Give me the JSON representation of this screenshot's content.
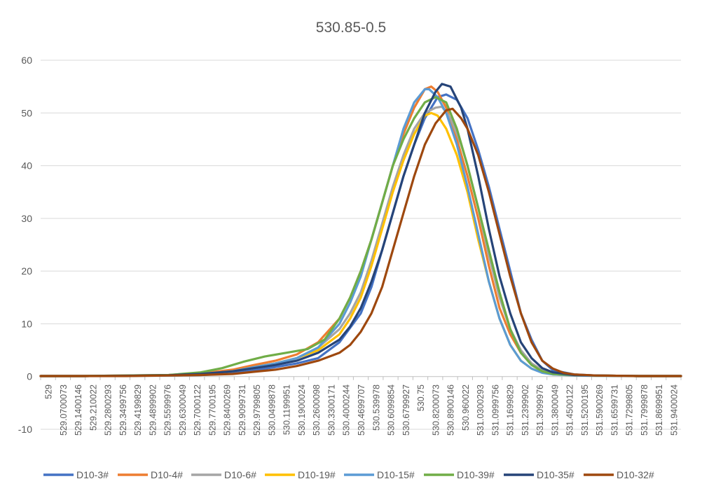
{
  "chart_data": {
    "type": "line",
    "title": "530.85-0.5",
    "xlabel": "",
    "ylabel": "",
    "ylim": [
      -10,
      60
    ],
    "yticks": [
      -10,
      0,
      10,
      20,
      30,
      40,
      50,
      60
    ],
    "x_category_labels": [
      "529",
      "529.0700073",
      "529.1400146",
      "529.210022",
      "529.2800293",
      "529.3499756",
      "529.4199829",
      "529.4899902",
      "529.5599976",
      "529.6300049",
      "529.7000122",
      "529.7700195",
      "529.8400269",
      "529.9099731",
      "529.9799805",
      "530.0499878",
      "530.1199951",
      "530.1900024",
      "530.2600098",
      "530.3300171",
      "530.4000244",
      "530.4699707",
      "530.539978",
      "530.6099854",
      "530.6799927",
      "530.75",
      "530.8200073",
      "530.8900146",
      "530.960022",
      "531.0300293",
      "531.0999756",
      "531.1699829",
      "531.2399902",
      "531.3099976",
      "531.3800049",
      "531.4500122",
      "531.5200195",
      "531.5900269",
      "531.6599731",
      "531.7299805",
      "531.7999878",
      "531.8699951",
      "531.9400024"
    ],
    "grid": true,
    "legend_position": "bottom",
    "series": [
      {
        "name": "D10-3#",
        "color": "#4472C4",
        "points": [
          [
            529.0,
            0.1
          ],
          [
            529.2,
            0.1
          ],
          [
            529.4,
            0.15
          ],
          [
            529.6,
            0.2
          ],
          [
            529.75,
            0.3
          ],
          [
            529.9,
            0.6
          ],
          [
            530.0,
            1.2
          ],
          [
            530.1,
            1.8
          ],
          [
            530.2,
            2.5
          ],
          [
            530.3,
            3.5
          ],
          [
            530.4,
            6.5
          ],
          [
            530.5,
            12
          ],
          [
            530.55,
            17
          ],
          [
            530.6,
            24
          ],
          [
            530.65,
            31
          ],
          [
            530.7,
            38
          ],
          [
            530.75,
            44
          ],
          [
            530.8,
            49
          ],
          [
            530.83,
            51
          ],
          [
            530.86,
            53
          ],
          [
            530.9,
            53.5
          ],
          [
            530.95,
            52.5
          ],
          [
            531.0,
            49
          ],
          [
            531.05,
            43
          ],
          [
            531.1,
            36
          ],
          [
            531.15,
            28
          ],
          [
            531.2,
            20
          ],
          [
            531.25,
            12
          ],
          [
            531.3,
            7
          ],
          [
            531.35,
            3
          ],
          [
            531.4,
            1.2
          ],
          [
            531.5,
            0.4
          ],
          [
            531.6,
            0.2
          ],
          [
            531.8,
            0.1
          ],
          [
            532.0,
            0.1
          ]
        ]
      },
      {
        "name": "D10-4#",
        "color": "#ED7D31",
        "points": [
          [
            529.0,
            0.1
          ],
          [
            529.2,
            0.1
          ],
          [
            529.4,
            0.2
          ],
          [
            529.6,
            0.3
          ],
          [
            529.75,
            0.6
          ],
          [
            529.9,
            1.3
          ],
          [
            530.0,
            2.2
          ],
          [
            530.1,
            3
          ],
          [
            530.2,
            4.2
          ],
          [
            530.3,
            6.5
          ],
          [
            530.4,
            11
          ],
          [
            530.45,
            15
          ],
          [
            530.5,
            20
          ],
          [
            530.55,
            26
          ],
          [
            530.6,
            33
          ],
          [
            530.65,
            40
          ],
          [
            530.7,
            46
          ],
          [
            530.75,
            51
          ],
          [
            530.8,
            54.5
          ],
          [
            530.83,
            55
          ],
          [
            530.86,
            54
          ],
          [
            530.9,
            51
          ],
          [
            530.95,
            45
          ],
          [
            531.0,
            38
          ],
          [
            531.05,
            30
          ],
          [
            531.1,
            21
          ],
          [
            531.15,
            13
          ],
          [
            531.2,
            8
          ],
          [
            531.25,
            4.5
          ],
          [
            531.3,
            2.5
          ],
          [
            531.35,
            1.2
          ],
          [
            531.4,
            0.6
          ],
          [
            531.5,
            0.3
          ],
          [
            531.6,
            0.2
          ],
          [
            531.8,
            0.1
          ],
          [
            532.0,
            0.1
          ]
        ]
      },
      {
        "name": "D10-6#",
        "color": "#A5A5A5",
        "points": [
          [
            529.0,
            0.1
          ],
          [
            529.2,
            0.1
          ],
          [
            529.4,
            0.15
          ],
          [
            529.6,
            0.25
          ],
          [
            529.75,
            0.5
          ],
          [
            529.9,
            1
          ],
          [
            530.0,
            1.8
          ],
          [
            530.1,
            2.5
          ],
          [
            530.2,
            3.5
          ],
          [
            530.3,
            5.5
          ],
          [
            530.4,
            9
          ],
          [
            530.45,
            12
          ],
          [
            530.5,
            16
          ],
          [
            530.55,
            22
          ],
          [
            530.6,
            29
          ],
          [
            530.65,
            36
          ],
          [
            530.7,
            42
          ],
          [
            530.75,
            47
          ],
          [
            530.8,
            50
          ],
          [
            530.85,
            51
          ],
          [
            530.88,
            51.2
          ],
          [
            530.92,
            49
          ],
          [
            530.97,
            44
          ],
          [
            531.0,
            40
          ],
          [
            531.05,
            32
          ],
          [
            531.1,
            23
          ],
          [
            531.15,
            15
          ],
          [
            531.2,
            9
          ],
          [
            531.25,
            5
          ],
          [
            531.3,
            2.5
          ],
          [
            531.35,
            1.2
          ],
          [
            531.4,
            0.6
          ],
          [
            531.5,
            0.3
          ],
          [
            531.6,
            0.2
          ],
          [
            531.8,
            0.1
          ],
          [
            532.0,
            0.1
          ]
        ]
      },
      {
        "name": "D10-19#",
        "color": "#FFC000",
        "points": [
          [
            529.0,
            0.1
          ],
          [
            529.2,
            0.1
          ],
          [
            529.4,
            0.15
          ],
          [
            529.6,
            0.25
          ],
          [
            529.75,
            0.5
          ],
          [
            529.9,
            1
          ],
          [
            530.0,
            1.8
          ],
          [
            530.1,
            2.5
          ],
          [
            530.2,
            3.5
          ],
          [
            530.3,
            5
          ],
          [
            530.4,
            8
          ],
          [
            530.45,
            11
          ],
          [
            530.5,
            15
          ],
          [
            530.55,
            21
          ],
          [
            530.6,
            28
          ],
          [
            530.65,
            35
          ],
          [
            530.7,
            41
          ],
          [
            530.75,
            46
          ],
          [
            530.8,
            49.5
          ],
          [
            530.83,
            50
          ],
          [
            530.86,
            49.5
          ],
          [
            530.9,
            47
          ],
          [
            530.95,
            42
          ],
          [
            531.0,
            35
          ],
          [
            531.05,
            26
          ],
          [
            531.1,
            18
          ],
          [
            531.15,
            11
          ],
          [
            531.2,
            6
          ],
          [
            531.25,
            3
          ],
          [
            531.3,
            1.5
          ],
          [
            531.35,
            0.8
          ],
          [
            531.4,
            0.4
          ],
          [
            531.5,
            0.2
          ],
          [
            531.6,
            0.15
          ],
          [
            531.8,
            0.1
          ],
          [
            532.0,
            0.1
          ]
        ]
      },
      {
        "name": "D10-15#",
        "color": "#5B9BD5",
        "points": [
          [
            529.0,
            0.1
          ],
          [
            529.2,
            0.1
          ],
          [
            529.4,
            0.15
          ],
          [
            529.6,
            0.25
          ],
          [
            529.75,
            0.5
          ],
          [
            529.9,
            1
          ],
          [
            530.0,
            1.8
          ],
          [
            530.1,
            2.5
          ],
          [
            530.2,
            3.5
          ],
          [
            530.3,
            5.5
          ],
          [
            530.4,
            10
          ],
          [
            530.45,
            14
          ],
          [
            530.5,
            19
          ],
          [
            530.55,
            26
          ],
          [
            530.6,
            33
          ],
          [
            530.65,
            40
          ],
          [
            530.7,
            47
          ],
          [
            530.75,
            52
          ],
          [
            530.8,
            54.5
          ],
          [
            530.82,
            54.5
          ],
          [
            530.86,
            53
          ],
          [
            530.9,
            50
          ],
          [
            530.95,
            44
          ],
          [
            531.0,
            36
          ],
          [
            531.05,
            27
          ],
          [
            531.1,
            18
          ],
          [
            531.15,
            11
          ],
          [
            531.2,
            6
          ],
          [
            531.25,
            3
          ],
          [
            531.3,
            1.5
          ],
          [
            531.35,
            0.7
          ],
          [
            531.4,
            0.4
          ],
          [
            531.5,
            0.2
          ],
          [
            531.6,
            0.15
          ],
          [
            531.8,
            0.1
          ],
          [
            532.0,
            0.1
          ]
        ]
      },
      {
        "name": "D10-39#",
        "color": "#70AD47",
        "points": [
          [
            529.0,
            0.1
          ],
          [
            529.2,
            0.1
          ],
          [
            529.4,
            0.2
          ],
          [
            529.6,
            0.3
          ],
          [
            529.75,
            0.8
          ],
          [
            529.85,
            1.6
          ],
          [
            529.95,
            2.8
          ],
          [
            530.05,
            3.8
          ],
          [
            530.15,
            4.5
          ],
          [
            530.25,
            5.2
          ],
          [
            530.33,
            7
          ],
          [
            530.4,
            11
          ],
          [
            530.45,
            15
          ],
          [
            530.5,
            20
          ],
          [
            530.55,
            26
          ],
          [
            530.6,
            33
          ],
          [
            530.65,
            40
          ],
          [
            530.7,
            45
          ],
          [
            530.75,
            49
          ],
          [
            530.8,
            52
          ],
          [
            530.85,
            53
          ],
          [
            530.9,
            52
          ],
          [
            530.95,
            47
          ],
          [
            531.0,
            40
          ],
          [
            531.05,
            32
          ],
          [
            531.1,
            24
          ],
          [
            531.15,
            16
          ],
          [
            531.2,
            9
          ],
          [
            531.25,
            4.5
          ],
          [
            531.3,
            2.2
          ],
          [
            531.35,
            1
          ],
          [
            531.4,
            0.5
          ],
          [
            531.5,
            0.3
          ],
          [
            531.6,
            0.2
          ],
          [
            531.8,
            0.1
          ],
          [
            532.0,
            0.1
          ]
        ]
      },
      {
        "name": "D10-35#",
        "color": "#264478",
        "points": [
          [
            529.0,
            0.1
          ],
          [
            529.2,
            0.1
          ],
          [
            529.4,
            0.15
          ],
          [
            529.6,
            0.25
          ],
          [
            529.75,
            0.5
          ],
          [
            529.9,
            1
          ],
          [
            530.0,
            1.6
          ],
          [
            530.1,
            2.2
          ],
          [
            530.2,
            3
          ],
          [
            530.3,
            4.5
          ],
          [
            530.4,
            7
          ],
          [
            530.45,
            9.5
          ],
          [
            530.5,
            13
          ],
          [
            530.55,
            18
          ],
          [
            530.6,
            24
          ],
          [
            530.65,
            31
          ],
          [
            530.7,
            38
          ],
          [
            530.75,
            44
          ],
          [
            530.8,
            50
          ],
          [
            530.85,
            54
          ],
          [
            530.88,
            55.5
          ],
          [
            530.92,
            55
          ],
          [
            530.97,
            51
          ],
          [
            531.0,
            47
          ],
          [
            531.05,
            38
          ],
          [
            531.1,
            28
          ],
          [
            531.15,
            19
          ],
          [
            531.2,
            12
          ],
          [
            531.25,
            6.5
          ],
          [
            531.3,
            3.5
          ],
          [
            531.35,
            1.6
          ],
          [
            531.4,
            0.8
          ],
          [
            531.5,
            0.3
          ],
          [
            531.6,
            0.2
          ],
          [
            531.8,
            0.1
          ],
          [
            532.0,
            0.1
          ]
        ]
      },
      {
        "name": "D10-32#",
        "color": "#9E480E",
        "points": [
          [
            529.0,
            0.1
          ],
          [
            529.2,
            0.1
          ],
          [
            529.4,
            0.1
          ],
          [
            529.6,
            0.2
          ],
          [
            529.75,
            0.3
          ],
          [
            529.9,
            0.5
          ],
          [
            530.0,
            0.9
          ],
          [
            530.1,
            1.3
          ],
          [
            530.2,
            2
          ],
          [
            530.3,
            3
          ],
          [
            530.4,
            4.5
          ],
          [
            530.45,
            6
          ],
          [
            530.5,
            8.5
          ],
          [
            530.55,
            12
          ],
          [
            530.6,
            17
          ],
          [
            530.65,
            24
          ],
          [
            530.7,
            31
          ],
          [
            530.75,
            38
          ],
          [
            530.8,
            44
          ],
          [
            530.85,
            48
          ],
          [
            530.9,
            50.5
          ],
          [
            530.93,
            50.8
          ],
          [
            530.97,
            49
          ],
          [
            531.0,
            47
          ],
          [
            531.05,
            42
          ],
          [
            531.1,
            35
          ],
          [
            531.15,
            27
          ],
          [
            531.2,
            19
          ],
          [
            531.25,
            12
          ],
          [
            531.3,
            6.5
          ],
          [
            531.35,
            3
          ],
          [
            531.4,
            1.5
          ],
          [
            531.45,
            0.7
          ],
          [
            531.5,
            0.4
          ],
          [
            531.6,
            0.2
          ],
          [
            531.8,
            0.1
          ],
          [
            532.0,
            0.1
          ]
        ]
      }
    ]
  }
}
